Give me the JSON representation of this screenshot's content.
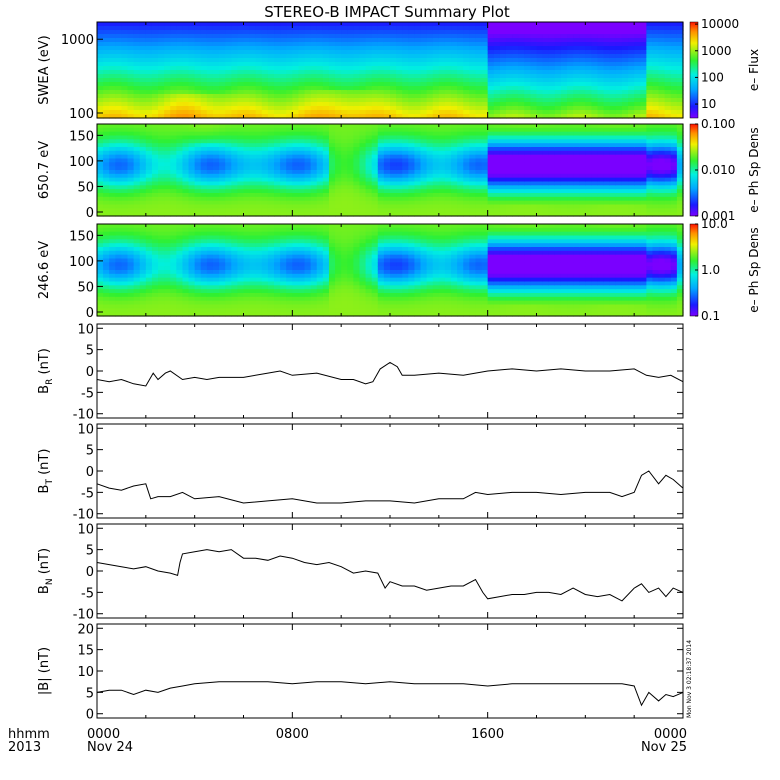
{
  "title": "STEREO-B IMPACT Summary Plot",
  "colors": {
    "ink": "#000000",
    "background": "#ffffff"
  },
  "time_axis": {
    "ticks": [
      {
        "hour": 0,
        "label": "0000",
        "sub": "Nov 24"
      },
      {
        "hour": 8,
        "label": "0800",
        "sub": ""
      },
      {
        "hour": 16,
        "label": "1600",
        "sub": ""
      },
      {
        "hour": 24,
        "label": "0000",
        "sub": "Nov 25"
      }
    ],
    "left_label_top": "hhmm",
    "left_label_bottom": "2013",
    "range_hours": [
      0,
      24
    ]
  },
  "stamp": "Mon Nov  3 02:18:37 2014",
  "chart_data": [
    {
      "type": "heatmap",
      "ylabel": "SWEA (eV)",
      "y_scale": "log",
      "y_ticks": [
        "100",
        "1000"
      ],
      "colorbar_label": "e– Flux",
      "colorbar_scale": "log",
      "colorbar_ticks": [
        "10",
        "100",
        "1000",
        "10000"
      ],
      "colorbar_range": [
        3,
        12000
      ],
      "summary": "flux high at low energies (~2000-10000), falling to ~20 at top; depleted interval 16:00-22:30"
    },
    {
      "type": "heatmap",
      "ylabel": "650.7 eV",
      "y_ticks": [
        "0",
        "50",
        "100",
        "150"
      ],
      "y_range": [
        0,
        180
      ],
      "colorbar_label": "e– Ph Sp Dens",
      "colorbar_scale": "log",
      "colorbar_ticks": [
        "0.001",
        "0.010",
        "0.100"
      ],
      "colorbar_range": [
        0.001,
        0.1
      ],
      "summary": "low density (~0.001) centred near 100 deg between 16:00 and 22:30"
    },
    {
      "type": "heatmap",
      "ylabel": "246.6 eV",
      "y_ticks": [
        "0",
        "50",
        "100",
        "150"
      ],
      "y_range": [
        0,
        180
      ],
      "colorbar_label": "e– Ph Sp Dens",
      "colorbar_scale": "log",
      "colorbar_ticks": [
        "0.1",
        "1.0",
        "10.0"
      ],
      "colorbar_range": [
        0.1,
        10
      ],
      "summary": "low density (~0.1) centred near 100 deg between 16:00 and 22:30"
    },
    {
      "type": "line",
      "ylabel": "B",
      "ylabel_sub": "R",
      "ylabel_unit": " (nT)",
      "ylim": [
        -11,
        11
      ],
      "y_ticks": [
        -10,
        -5,
        0,
        5,
        10
      ],
      "series": [
        {
          "x": [
            0,
            0.5,
            1,
            1.5,
            2,
            2.3,
            2.5,
            2.8,
            3,
            3.5,
            4,
            4.5,
            5,
            6,
            7,
            7.5,
            8,
            9,
            10,
            10.5,
            11,
            11.3,
            11.6,
            12,
            12.3,
            12.5,
            13,
            14,
            15,
            16,
            17,
            18,
            19,
            20,
            21,
            22,
            22.5,
            23,
            23.5,
            24
          ],
          "y": [
            -2,
            -2.5,
            -2,
            -3,
            -3.5,
            -0.5,
            -2,
            -0.5,
            0,
            -2,
            -1.5,
            -2,
            -1.5,
            -1.5,
            -0.5,
            0,
            -1,
            -0.5,
            -2,
            -2,
            -3,
            -2.5,
            0.5,
            2,
            1,
            -1,
            -1,
            -0.5,
            -1,
            0,
            0.5,
            0,
            0.5,
            0,
            0,
            0.5,
            -1,
            -1.5,
            -1,
            -2.5
          ]
        }
      ]
    },
    {
      "type": "line",
      "ylabel": "B",
      "ylabel_sub": "T",
      "ylabel_unit": " (nT)",
      "ylim": [
        -11,
        11
      ],
      "y_ticks": [
        -10,
        -5,
        0,
        5,
        10
      ],
      "series": [
        {
          "x": [
            0,
            0.5,
            1,
            1.5,
            2,
            2.2,
            2.5,
            3,
            3.5,
            4,
            5,
            6,
            7,
            8,
            9,
            10,
            11,
            12,
            13,
            14,
            15,
            15.5,
            16,
            17,
            18,
            19,
            20,
            21,
            21.5,
            22,
            22.3,
            22.6,
            23,
            23.3,
            23.6,
            24
          ],
          "y": [
            -3,
            -4,
            -4.5,
            -3.5,
            -3,
            -6.5,
            -6,
            -6,
            -5,
            -6.5,
            -6,
            -7.5,
            -7,
            -6.5,
            -7.5,
            -7.5,
            -7,
            -7,
            -7.5,
            -6.5,
            -6.5,
            -5,
            -5.5,
            -5,
            -5,
            -5.5,
            -5,
            -5,
            -6,
            -5,
            -1,
            0,
            -3,
            -1,
            -2,
            -4
          ]
        }
      ]
    },
    {
      "type": "line",
      "ylabel": "B",
      "ylabel_sub": "N",
      "ylabel_unit": " (nT)",
      "ylim": [
        -11,
        11
      ],
      "y_ticks": [
        -10,
        -5,
        0,
        5,
        10
      ],
      "series": [
        {
          "x": [
            0,
            0.5,
            1,
            1.5,
            2,
            2.5,
            3,
            3.3,
            3.4,
            3.5,
            4,
            4.5,
            5,
            5.5,
            6,
            6.5,
            7,
            7.5,
            8,
            8.5,
            9,
            9.5,
            10,
            10.5,
            11,
            11.5,
            11.8,
            12,
            12.5,
            13,
            13.5,
            14,
            14.5,
            15,
            15.5,
            15.8,
            16,
            16.5,
            17,
            17.5,
            18,
            18.5,
            19,
            19.5,
            20,
            20.5,
            21,
            21.5,
            22,
            22.3,
            22.6,
            23,
            23.3,
            23.6,
            24
          ],
          "y": [
            2,
            1.5,
            1,
            0.5,
            1,
            0,
            -0.5,
            -1,
            2,
            4,
            4.5,
            5,
            4.5,
            5,
            3,
            3,
            2.5,
            3.5,
            3,
            2,
            1.5,
            2,
            1,
            -0.5,
            0,
            -0.5,
            -4,
            -2.5,
            -3.5,
            -3.5,
            -4.5,
            -4,
            -3.5,
            -3.5,
            -2,
            -5,
            -6.5,
            -6,
            -5.5,
            -5.5,
            -5,
            -5,
            -5.5,
            -4,
            -5.5,
            -6,
            -5.5,
            -7,
            -4,
            -3,
            -5,
            -4,
            -6,
            -4,
            -5
          ]
        }
      ]
    },
    {
      "type": "line",
      "ylabel": "|B|",
      "ylabel_unit": " (nT)",
      "ylim": [
        -1,
        21
      ],
      "y_ticks": [
        0,
        5,
        10,
        15,
        20
      ],
      "series": [
        {
          "x": [
            0,
            0.5,
            1,
            1.5,
            2,
            2.5,
            3,
            3.5,
            4,
            5,
            6,
            7,
            8,
            9,
            10,
            11,
            12,
            13,
            14,
            15,
            16,
            17,
            18,
            19,
            20,
            21,
            21.5,
            22,
            22.3,
            22.6,
            23,
            23.3,
            23.6,
            24
          ],
          "y": [
            5,
            5.5,
            5.5,
            4.5,
            5.5,
            5,
            6,
            6.5,
            7,
            7.5,
            7.5,
            7.5,
            7,
            7.5,
            7.5,
            7,
            7.5,
            7,
            7,
            7,
            6.5,
            7,
            7,
            7,
            7,
            7,
            7,
            6.5,
            2,
            5,
            3,
            4.5,
            4,
            5
          ]
        }
      ]
    }
  ]
}
